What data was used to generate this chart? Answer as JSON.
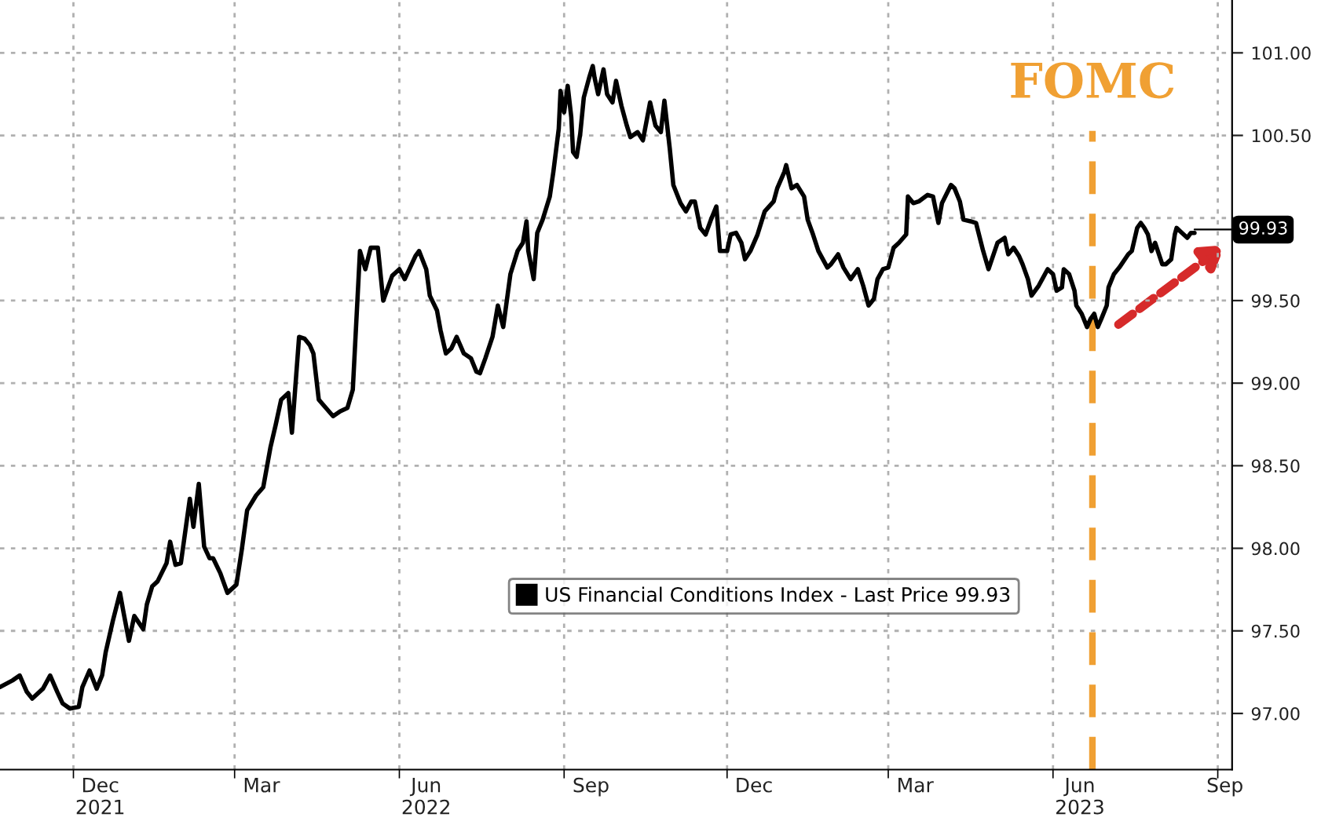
{
  "chart_data": {
    "type": "line",
    "x": [
      "2021-10-21",
      "2021-10-28",
      "2021-11-01",
      "2021-11-05",
      "2021-11-08",
      "2021-11-14",
      "2021-11-18",
      "2021-11-22",
      "2021-11-25",
      "2021-11-29",
      "2021-12-04",
      "2021-12-06",
      "2021-12-10",
      "2021-12-14",
      "2021-12-17",
      "2021-12-19",
      "2021-12-23",
      "2021-12-27",
      "2021-12-29",
      "2022-01-01",
      "2022-01-04",
      "2022-01-09",
      "2022-01-11",
      "2022-01-14",
      "2022-01-17",
      "2022-01-22",
      "2022-01-24",
      "2022-01-27",
      "2022-01-30",
      "2022-02-04",
      "2022-02-06",
      "2022-02-09",
      "2022-02-12",
      "2022-02-15",
      "2022-02-17",
      "2022-02-21",
      "2022-02-25",
      "2022-03-02",
      "2022-03-05",
      "2022-03-08",
      "2022-03-13",
      "2022-03-17",
      "2022-03-21",
      "2022-03-24",
      "2022-03-27",
      "2022-03-31",
      "2022-04-02",
      "2022-04-06",
      "2022-04-09",
      "2022-04-12",
      "2022-04-14",
      "2022-04-17",
      "2022-04-21",
      "2022-04-25",
      "2022-04-29",
      "2022-05-03",
      "2022-05-06",
      "2022-05-10",
      "2022-05-13",
      "2022-05-16",
      "2022-05-20",
      "2022-05-23",
      "2022-05-28",
      "2022-06-01",
      "2022-06-04",
      "2022-06-10",
      "2022-06-12",
      "2022-06-16",
      "2022-06-18",
      "2022-06-22",
      "2022-06-24",
      "2022-06-27",
      "2022-06-30",
      "2022-07-03",
      "2022-07-07",
      "2022-07-11",
      "2022-07-14",
      "2022-07-16",
      "2022-07-19",
      "2022-07-23",
      "2022-07-26",
      "2022-07-29",
      "2022-08-02",
      "2022-08-06",
      "2022-08-09",
      "2022-08-11",
      "2022-08-12",
      "2022-08-15",
      "2022-08-17",
      "2022-08-20",
      "2022-08-24",
      "2022-08-26",
      "2022-08-29",
      "2022-08-30",
      "2022-09-01",
      "2022-09-03",
      "2022-09-05",
      "2022-09-06",
      "2022-09-08",
      "2022-09-10",
      "2022-09-12",
      "2022-09-15",
      "2022-09-17",
      "2022-09-18",
      "2022-09-20",
      "2022-09-23",
      "2022-09-25",
      "2022-09-28",
      "2022-09-30",
      "2022-10-03",
      "2022-10-06",
      "2022-10-08",
      "2022-10-12",
      "2022-10-15",
      "2022-10-19",
      "2022-10-22",
      "2022-10-25",
      "2022-10-27",
      "2022-10-30",
      "2022-11-01",
      "2022-11-05",
      "2022-11-08",
      "2022-11-11",
      "2022-11-13",
      "2022-11-16",
      "2022-11-19",
      "2022-11-22",
      "2022-11-25",
      "2022-11-27",
      "2022-12-01",
      "2022-12-03",
      "2022-12-06",
      "2022-12-09",
      "2022-12-11",
      "2022-12-14",
      "2022-12-18",
      "2022-12-22",
      "2022-12-27",
      "2022-12-29",
      "2023-01-02",
      "2023-01-03",
      "2023-01-06",
      "2023-01-09",
      "2023-01-13",
      "2023-01-15",
      "2023-01-18",
      "2023-01-21",
      "2023-01-26",
      "2023-01-28",
      "2023-02-01",
      "2023-02-04",
      "2023-02-08",
      "2023-02-12",
      "2023-02-15",
      "2023-02-18",
      "2023-02-21",
      "2023-02-23",
      "2023-02-26",
      "2023-03-01",
      "2023-03-04",
      "2023-03-07",
      "2023-03-11",
      "2023-03-12",
      "2023-03-15",
      "2023-03-18",
      "2023-03-23",
      "2023-03-26",
      "2023-03-29",
      "2023-03-31",
      "2023-04-05",
      "2023-04-07",
      "2023-04-10",
      "2023-04-12",
      "2023-04-16",
      "2023-04-19",
      "2023-04-23",
      "2023-04-26",
      "2023-05-01",
      "2023-05-05",
      "2023-05-07",
      "2023-05-10",
      "2023-05-13",
      "2023-05-15",
      "2023-05-18",
      "2023-05-20",
      "2023-05-24",
      "2023-05-26",
      "2023-05-29",
      "2023-06-01",
      "2023-06-03",
      "2023-06-06",
      "2023-06-07",
      "2023-06-10",
      "2023-06-13",
      "2023-06-14",
      "2023-06-17",
      "2023-06-20",
      "2023-06-22",
      "2023-06-24",
      "2023-06-26",
      "2023-06-28",
      "2023-07-01",
      "2023-07-02",
      "2023-07-05",
      "2023-07-08",
      "2023-07-13",
      "2023-07-15",
      "2023-07-18",
      "2023-07-20",
      "2023-07-22",
      "2023-07-24",
      "2023-07-26",
      "2023-07-28",
      "2023-08-01",
      "2023-08-03",
      "2023-08-06",
      "2023-08-08",
      "2023-08-09",
      "2023-08-12",
      "2023-08-15",
      "2023-08-17",
      "2023-08-19"
    ],
    "series": [
      {
        "name": "US Financial Conditions Index - Last Price 99.93",
        "color": "#000000",
        "values": [
          97.16,
          97.2,
          97.23,
          97.13,
          97.09,
          97.15,
          97.23,
          97.13,
          97.06,
          97.03,
          97.04,
          97.16,
          97.26,
          97.15,
          97.23,
          97.37,
          97.56,
          97.73,
          97.61,
          97.44,
          97.59,
          97.51,
          97.66,
          97.77,
          97.8,
          97.91,
          98.04,
          97.9,
          97.91,
          98.3,
          98.13,
          98.39,
          98.01,
          97.94,
          97.94,
          97.85,
          97.73,
          97.78,
          97.99,
          98.23,
          98.32,
          98.37,
          98.61,
          98.75,
          98.9,
          98.94,
          98.7,
          99.28,
          99.27,
          99.23,
          99.18,
          98.9,
          98.85,
          98.8,
          98.83,
          98.85,
          98.96,
          99.8,
          99.69,
          99.82,
          99.82,
          99.5,
          99.65,
          99.69,
          99.63,
          99.77,
          99.8,
          99.69,
          99.53,
          99.44,
          99.32,
          99.18,
          99.21,
          99.28,
          99.18,
          99.15,
          99.07,
          99.06,
          99.15,
          99.28,
          99.47,
          99.34,
          99.66,
          99.8,
          99.85,
          99.98,
          99.8,
          99.63,
          99.91,
          99.99,
          100.13,
          100.28,
          100.54,
          100.77,
          100.64,
          100.8,
          100.61,
          100.4,
          100.37,
          100.51,
          100.73,
          100.85,
          100.92,
          100.85,
          100.75,
          100.9,
          100.75,
          100.7,
          100.83,
          100.68,
          100.56,
          100.49,
          100.52,
          100.47,
          100.7,
          100.56,
          100.52,
          100.71,
          100.42,
          100.2,
          100.09,
          100.04,
          100.1,
          100.1,
          99.94,
          99.9,
          99.99,
          100.07,
          99.8,
          99.8,
          99.9,
          99.91,
          99.85,
          99.75,
          99.8,
          99.9,
          100.04,
          100.1,
          100.18,
          100.28,
          100.32,
          100.18,
          100.2,
          100.13,
          99.99,
          99.9,
          99.8,
          99.7,
          99.72,
          99.78,
          99.7,
          99.63,
          99.69,
          99.59,
          99.47,
          99.51,
          99.63,
          99.69,
          99.7,
          99.82,
          99.85,
          99.9,
          100.13,
          100.09,
          100.1,
          100.14,
          100.13,
          99.97,
          100.09,
          100.2,
          100.18,
          100.1,
          99.99,
          99.98,
          99.97,
          99.8,
          99.69,
          99.85,
          99.88,
          99.78,
          99.82,
          99.77,
          99.72,
          99.63,
          99.53,
          99.59,
          99.63,
          99.69,
          99.66,
          99.56,
          99.58,
          99.69,
          99.66,
          99.56,
          99.47,
          99.42,
          99.34,
          99.39,
          99.42,
          99.34,
          99.39,
          99.47,
          99.58,
          99.66,
          99.7,
          99.78,
          99.8,
          99.94,
          99.97,
          99.94,
          99.9,
          99.8,
          99.85,
          99.72,
          99.72,
          99.75,
          99.9,
          99.94,
          99.91,
          99.88,
          99.91,
          99.91
        ]
      }
    ],
    "xlim": [
      "2021-10-21",
      "2023-09-09"
    ],
    "xticks": [
      {
        "value": "2021-12-01",
        "label": null
      },
      {
        "value": "2021-12-16",
        "label": "Dec\n2021"
      },
      {
        "value": "2022-03-01",
        "label": null
      },
      {
        "value": "2022-03-16",
        "label": "Mar"
      },
      {
        "value": "2022-06-01",
        "label": null
      },
      {
        "value": "2022-06-16",
        "label": "Jun\n2022"
      },
      {
        "value": "2022-09-01",
        "label": null
      },
      {
        "value": "2022-09-16",
        "label": "Sep"
      },
      {
        "value": "2022-12-01",
        "label": null
      },
      {
        "value": "2022-12-16",
        "label": "Dec"
      },
      {
        "value": "2023-03-01",
        "label": null
      },
      {
        "value": "2023-03-16",
        "label": "Mar"
      },
      {
        "value": "2023-06-01",
        "label": null
      },
      {
        "value": "2023-06-16",
        "label": "Jun\n2023"
      },
      {
        "value": "2023-09-01",
        "label": null
      },
      {
        "value": "2023-09-05",
        "label": "Sep"
      }
    ],
    "ylim": [
      96.66,
      101.32
    ],
    "yticks": [
      {
        "value": 97,
        "label": "97.00"
      },
      {
        "value": 97.5,
        "label": "97.50"
      },
      {
        "value": 98,
        "label": "98.00"
      },
      {
        "value": 98.5,
        "label": "98.50"
      },
      {
        "value": 99,
        "label": "99.00"
      },
      {
        "value": 99.5,
        "label": "99.50"
      },
      {
        "value": 100,
        "label": null
      },
      {
        "value": 100.5,
        "label": "100.50"
      },
      {
        "value": 101,
        "label": "101.00"
      }
    ],
    "ref_lines": [
      {
        "axis": "x",
        "value": "2023-06-23",
        "label": "FOMC",
        "color": "#f0a033",
        "line_style": "dashed"
      }
    ],
    "annotations": [
      {
        "text": "99.93",
        "x": "2023-08-19",
        "y": 99.93
      }
    ],
    "grid": true,
    "legend": "bottom",
    "marker": "none",
    "line_style": "solid"
  }
}
